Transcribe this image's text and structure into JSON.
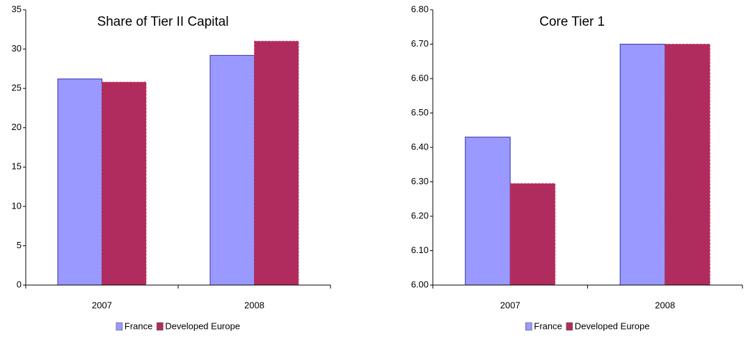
{
  "chart_data": [
    {
      "type": "bar",
      "title": "Share of Tier II Capital",
      "categories": [
        "2007",
        "2008"
      ],
      "series": [
        {
          "name": "France",
          "color": "#9999ff",
          "values": [
            26.2,
            29.2
          ]
        },
        {
          "name": "Developed Europe",
          "color": "#b02c5f",
          "values": [
            25.8,
            31.0
          ]
        }
      ],
      "ylim": [
        0,
        35
      ],
      "yticks": [
        0,
        5,
        10,
        15,
        20,
        25,
        30,
        35
      ],
      "legend": "bottom"
    },
    {
      "type": "bar",
      "title": "Core Tier 1",
      "categories": [
        "2007",
        "2008"
      ],
      "series": [
        {
          "name": "France",
          "color": "#9999ff",
          "values": [
            6.43,
            6.7
          ]
        },
        {
          "name": "Developed Europe",
          "color": "#b02c5f",
          "values": [
            6.295,
            6.7
          ]
        }
      ],
      "ylim": [
        6.0,
        6.8
      ],
      "yticks": [
        {
          "value": 6.0,
          "label": "6.00"
        },
        {
          "value": 6.1,
          "label": "6.10"
        },
        {
          "value": 6.2,
          "label": "6.20"
        },
        {
          "value": 6.3,
          "label": "6.30"
        },
        {
          "value": 6.4,
          "label": "6.40"
        },
        {
          "value": 6.5,
          "label": "6.50"
        },
        {
          "value": 6.6,
          "label": "6.60"
        },
        {
          "value": 6.7,
          "label": "6.70"
        },
        {
          "value": 6.8,
          "label": "6.80"
        }
      ],
      "legend": "bottom"
    }
  ]
}
